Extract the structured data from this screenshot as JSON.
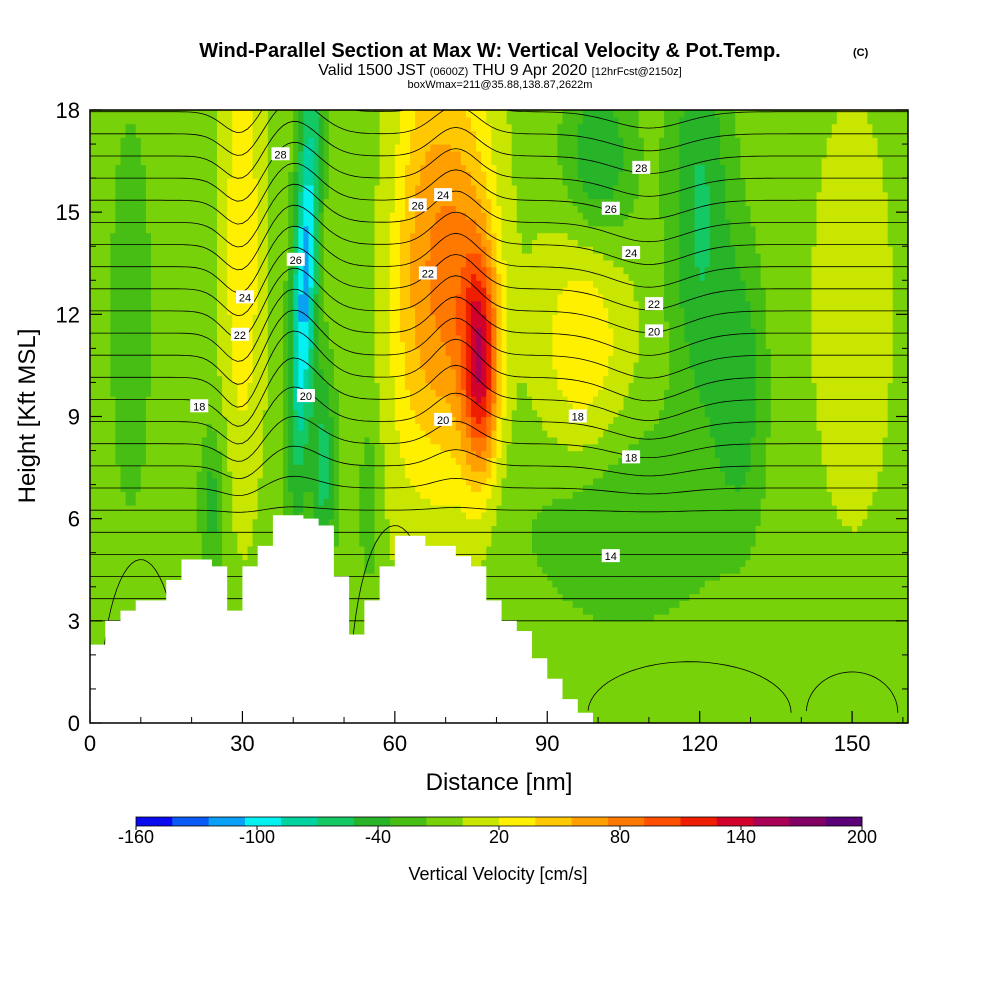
{
  "chart_data": {
    "type": "heatmap",
    "title": "Wind-Parallel Section at Max W: Vertical Velocity & Pot.Temp.",
    "title_mark": "(C)",
    "subtitle": {
      "valid": "Valid 1500 JST",
      "utc": "(0600Z)",
      "date": "THU 9 Apr 2020",
      "forecast": "[12hrFcst@2150z]"
    },
    "box_info": "boxWmax=211@35.88,138.87,2622m",
    "xlabel": "Distance [nm]",
    "ylabel": "Height [Kft MSL]",
    "xlim": [
      0,
      161
    ],
    "ylim": [
      0,
      18
    ],
    "x_ticks": [
      0,
      30,
      60,
      90,
      120,
      150
    ],
    "y_ticks": [
      0,
      3,
      6,
      9,
      12,
      15,
      18
    ],
    "colorbar": {
      "title": "Vertical Velocity [cm/s]",
      "min": -160,
      "max": 200,
      "step": 20,
      "tick_labels": [
        "-160",
        "-100",
        "-40",
        "20",
        "80",
        "140",
        "200"
      ],
      "tick_values": [
        -160,
        -100,
        -40,
        20,
        80,
        140,
        200
      ],
      "colors": [
        "#0a0af0",
        "#0a5af5",
        "#0aa0f5",
        "#05f0f0",
        "#00d2a0",
        "#14c864",
        "#28b428",
        "#46be14",
        "#78d20a",
        "#c8e600",
        "#fff000",
        "#ffc800",
        "#ffa000",
        "#ff7800",
        "#ff5000",
        "#f01e00",
        "#d2002d",
        "#aa0055",
        "#820064",
        "#5a0078"
      ]
    },
    "terrain": {
      "x": [
        0,
        3,
        3,
        6,
        6,
        9,
        9,
        15,
        15,
        18,
        18,
        24,
        24,
        27,
        27,
        30,
        30,
        33,
        33,
        36,
        36,
        42,
        42,
        45,
        45,
        48,
        48,
        51,
        51,
        54,
        54,
        57,
        57,
        60,
        60,
        63,
        63,
        66,
        66,
        72,
        72,
        75,
        75,
        78,
        78,
        81,
        81,
        84,
        84,
        87,
        87,
        90,
        90,
        93,
        93,
        96,
        96,
        99,
        99,
        102,
        102,
        161
      ],
      "y": [
        2.3,
        2.3,
        3.0,
        3.0,
        3.3,
        3.3,
        3.6,
        3.6,
        4.2,
        4.2,
        4.8,
        4.8,
        4.6,
        4.6,
        3.3,
        3.3,
        4.6,
        4.6,
        5.2,
        5.2,
        6.1,
        6.1,
        6.0,
        6.0,
        5.8,
        5.8,
        4.3,
        4.3,
        2.6,
        2.6,
        3.6,
        3.6,
        4.6,
        4.6,
        5.5,
        5.5,
        5.5,
        5.5,
        5.2,
        5.2,
        4.9,
        4.9,
        4.6,
        4.6,
        3.6,
        3.6,
        3.0,
        3.0,
        2.7,
        2.7,
        1.9,
        1.9,
        1.3,
        1.3,
        0.7,
        0.7,
        0.3,
        0.3,
        0.0,
        0.0,
        0.0,
        0.0
      ]
    },
    "potential_temperature_labels": [
      {
        "text": "28",
        "x": 37.5,
        "y": 16.7
      },
      {
        "text": "26",
        "x": 40.5,
        "y": 13.6
      },
      {
        "text": "24",
        "x": 30.5,
        "y": 12.5
      },
      {
        "text": "22",
        "x": 29.5,
        "y": 11.4
      },
      {
        "text": "20",
        "x": 42.5,
        "y": 9.6
      },
      {
        "text": "18",
        "x": 21.5,
        "y": 9.3
      },
      {
        "text": "26",
        "x": 64.5,
        "y": 15.2
      },
      {
        "text": "24",
        "x": 69.5,
        "y": 15.5
      },
      {
        "text": "22",
        "x": 66.5,
        "y": 13.2
      },
      {
        "text": "20",
        "x": 69.5,
        "y": 8.9
      },
      {
        "text": "28",
        "x": 108.5,
        "y": 16.3
      },
      {
        "text": "26",
        "x": 102.5,
        "y": 15.1
      },
      {
        "text": "24",
        "x": 106.5,
        "y": 13.8
      },
      {
        "text": "22",
        "x": 111.0,
        "y": 12.3
      },
      {
        "text": "20",
        "x": 111.0,
        "y": 11.5
      },
      {
        "text": "18",
        "x": 96.0,
        "y": 9.0
      },
      {
        "text": "18",
        "x": 106.5,
        "y": 7.8
      },
      {
        "text": "14",
        "x": 102.5,
        "y": 4.9
      }
    ]
  }
}
